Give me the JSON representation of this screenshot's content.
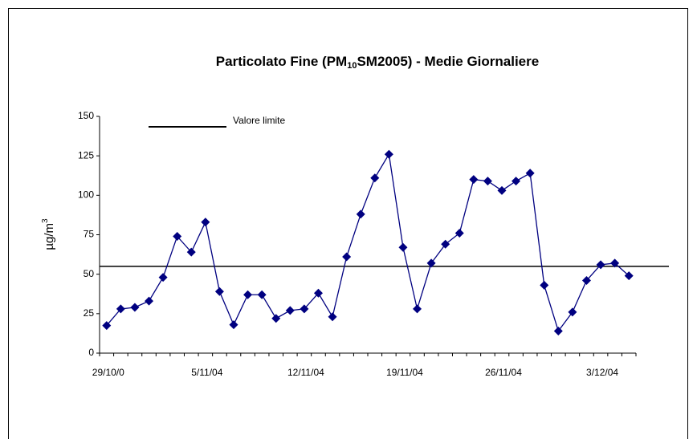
{
  "chart_data": {
    "type": "line",
    "title_parts": [
      "Particolato Fine (PM",
      "10",
      "SM2005) -  Medie Giornaliere"
    ],
    "y_label_parts": [
      "µg/m",
      "3"
    ],
    "categories": [
      "29/10/0",
      null,
      null,
      null,
      null,
      null,
      null,
      "5/11/04",
      null,
      null,
      null,
      null,
      null,
      null,
      "12/11/04",
      null,
      null,
      null,
      null,
      null,
      null,
      "19/11/04",
      null,
      null,
      null,
      null,
      null,
      null,
      "26/11/04",
      null,
      null,
      null,
      null,
      null,
      null,
      "3/12/04",
      null,
      null
    ],
    "series": [
      {
        "name": "PM10",
        "color": "#000080",
        "values": [
          17.5,
          28,
          29,
          33,
          48,
          74,
          64,
          83,
          39,
          18,
          37,
          37,
          22,
          27,
          28,
          38,
          23,
          61,
          88,
          111,
          126,
          67,
          28,
          57,
          69,
          76,
          110,
          109,
          103,
          109,
          114,
          43,
          14,
          26,
          46,
          56,
          57,
          49
        ]
      }
    ],
    "limit": {
      "name": "Valore limite",
      "value": 55,
      "color": "#000000"
    },
    "ylim": [
      0,
      150
    ],
    "yticks": [
      0,
      25,
      50,
      75,
      100,
      125,
      150
    ]
  }
}
